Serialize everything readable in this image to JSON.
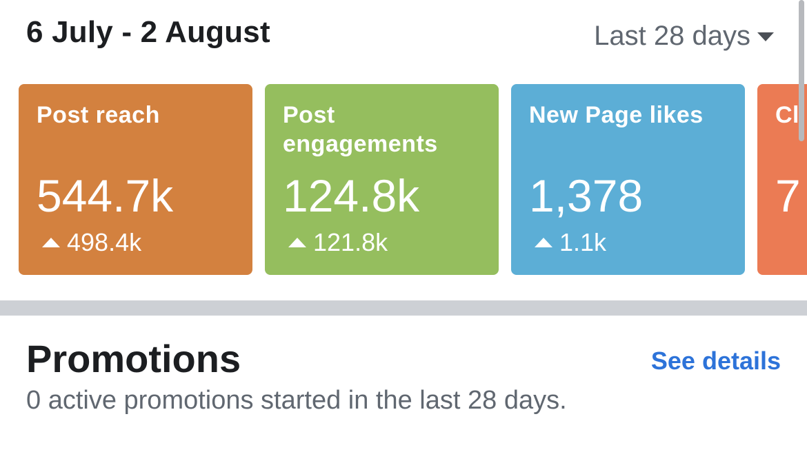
{
  "header": {
    "date_range": "6 July - 2 August",
    "period": "Last 28 days"
  },
  "cards": [
    {
      "label": "Post reach",
      "value": "544.7k",
      "delta": "498.4k",
      "color": "#d3813f"
    },
    {
      "label": "Post engagements",
      "value": "124.8k",
      "delta": "121.8k",
      "color": "#95be5e"
    },
    {
      "label": "New Page likes",
      "value": "1,378",
      "delta": "1.1k",
      "color": "#5caed6"
    },
    {
      "label": "Cl",
      "value": "7",
      "color": "#eb7b54"
    }
  ],
  "promotions": {
    "title": "Promotions",
    "link": "See details",
    "subtitle": "0 active promotions started in the last 28 days."
  },
  "icons": {
    "period_caret": "caret-down-icon",
    "delta_arrow": "triangle-up-icon"
  }
}
